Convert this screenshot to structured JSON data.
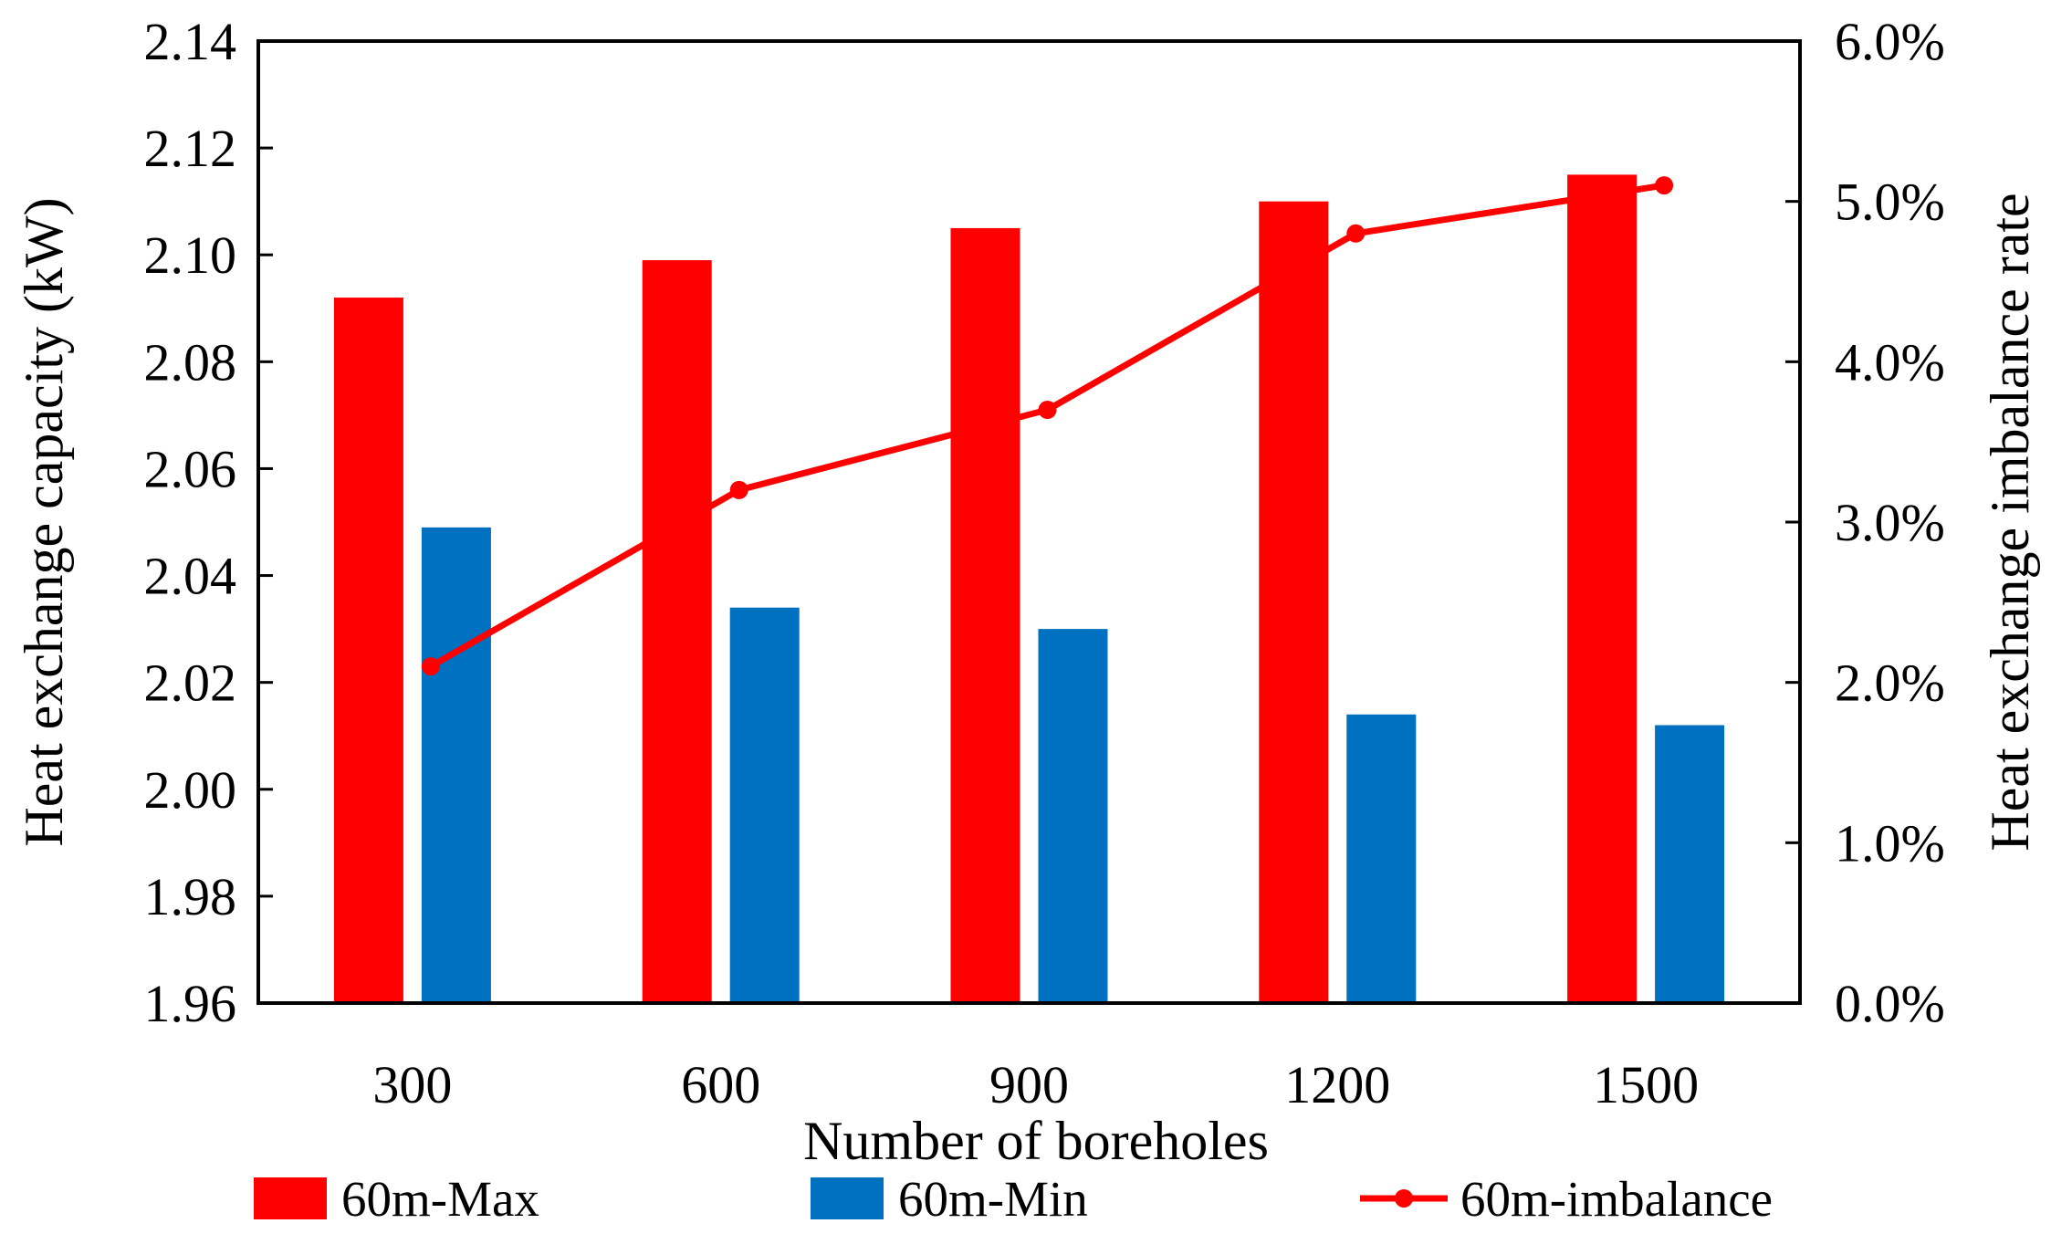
{
  "chart_data": {
    "type": "bar+line",
    "title": "",
    "xlabel": "Number of boreholes",
    "ylabel": "Heat exchange capacity (kW)",
    "y2label": "Heat exchange imbalance rate",
    "categories": [
      "300",
      "600",
      "900",
      "1200",
      "1500"
    ],
    "ylim": [
      1.96,
      2.14
    ],
    "yticks": [
      "1.96",
      "1.98",
      "2.00",
      "2.02",
      "2.04",
      "2.06",
      "2.08",
      "2.10",
      "2.12",
      "2.14"
    ],
    "y2lim": [
      0.0,
      6.0
    ],
    "y2ticks": [
      "0.0%",
      "1.0%",
      "2.0%",
      "3.0%",
      "4.0%",
      "5.0%",
      "6.0%"
    ],
    "series": [
      {
        "name": "60m-Max",
        "kind": "bar",
        "axis": "left",
        "color": "#ff0000",
        "values": [
          2.092,
          2.099,
          2.105,
          2.11,
          2.115
        ]
      },
      {
        "name": "60m-Min",
        "kind": "bar",
        "axis": "left",
        "color": "#0070c0",
        "values": [
          2.049,
          2.034,
          2.03,
          2.014,
          2.012
        ]
      },
      {
        "name": "60m-imbalance",
        "kind": "line",
        "axis": "right",
        "color": "#ff0000",
        "values": [
          2.1,
          3.2,
          3.7,
          4.8,
          5.1
        ]
      }
    ],
    "grid": false,
    "legend_position": "bottom"
  }
}
